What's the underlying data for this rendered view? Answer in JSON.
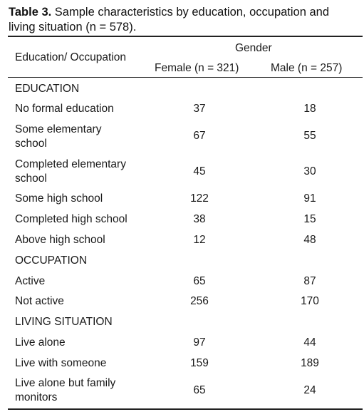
{
  "caption": {
    "label": "Table 3.",
    "line1": " Sample characteristics by education, occupation and",
    "line2": "living situation (n = 578)."
  },
  "header": {
    "col0": "Education/ Occupation",
    "group": "Gender",
    "female": "Female (n = 321)",
    "male": "Male (n = 257)"
  },
  "rows": [
    {
      "label": "EDUCATION"
    },
    {
      "label": "No formal education",
      "female": "37",
      "male": "18"
    },
    {
      "label1": "Some elementary",
      "label2": "school",
      "female": "67",
      "male": "55"
    },
    {
      "label1": "Completed elementary",
      "label2": "school",
      "female": "45",
      "male": "30"
    },
    {
      "label": "Some high school",
      "female": "122",
      "male": "91"
    },
    {
      "label": "Completed high school",
      "female": "38",
      "male": "15"
    },
    {
      "label": "Above high school",
      "female": "12",
      "male": "48"
    },
    {
      "label": "OCCUPATION"
    },
    {
      "label": "Active",
      "female": "65",
      "male": "87"
    },
    {
      "label": "Not active",
      "female": "256",
      "male": "170"
    },
    {
      "label": "LIVING SITUATION"
    },
    {
      "label": "Live alone",
      "female": "97",
      "male": "44"
    },
    {
      "label": "Live with someone",
      "female": "159",
      "male": "189"
    },
    {
      "label1": "Live alone but family",
      "label2": "monitors",
      "female": "65",
      "male": "24"
    }
  ]
}
